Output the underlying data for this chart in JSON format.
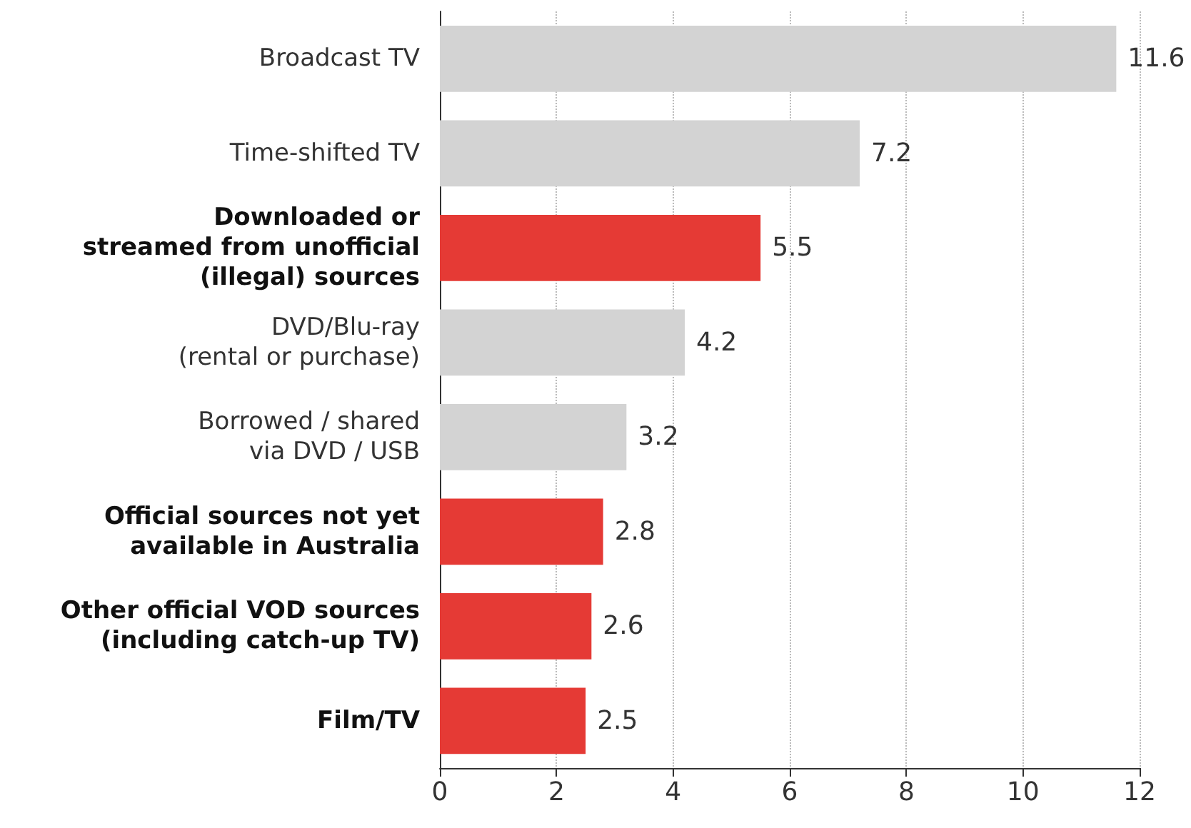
{
  "chart_data": {
    "type": "bar",
    "orientation": "horizontal",
    "categories": [
      "Broadcast TV",
      "Time-shifted TV",
      "Downloaded or\nstreamed from unofficial\n(illegal) sources",
      "DVD/Blu-ray\n(rental or purchase)",
      "Borrowed / shared\nvia DVD / USB",
      "Official sources not yet\navailable in Australia",
      "Other official VOD sources\n(including catch-up TV)",
      "Film/TV"
    ],
    "values": [
      11.6,
      7.2,
      5.5,
      4.2,
      3.2,
      2.8,
      2.6,
      2.5
    ],
    "colors": [
      "#d3d3d3",
      "#d3d3d3",
      "#e53a35",
      "#d3d3d3",
      "#d3d3d3",
      "#e53a35",
      "#e53a35",
      "#e53a35"
    ],
    "xlim": [
      0,
      12
    ],
    "xticks": [
      0,
      2,
      4,
      6,
      8,
      10,
      12
    ],
    "grid": "x",
    "data_labels": true
  }
}
